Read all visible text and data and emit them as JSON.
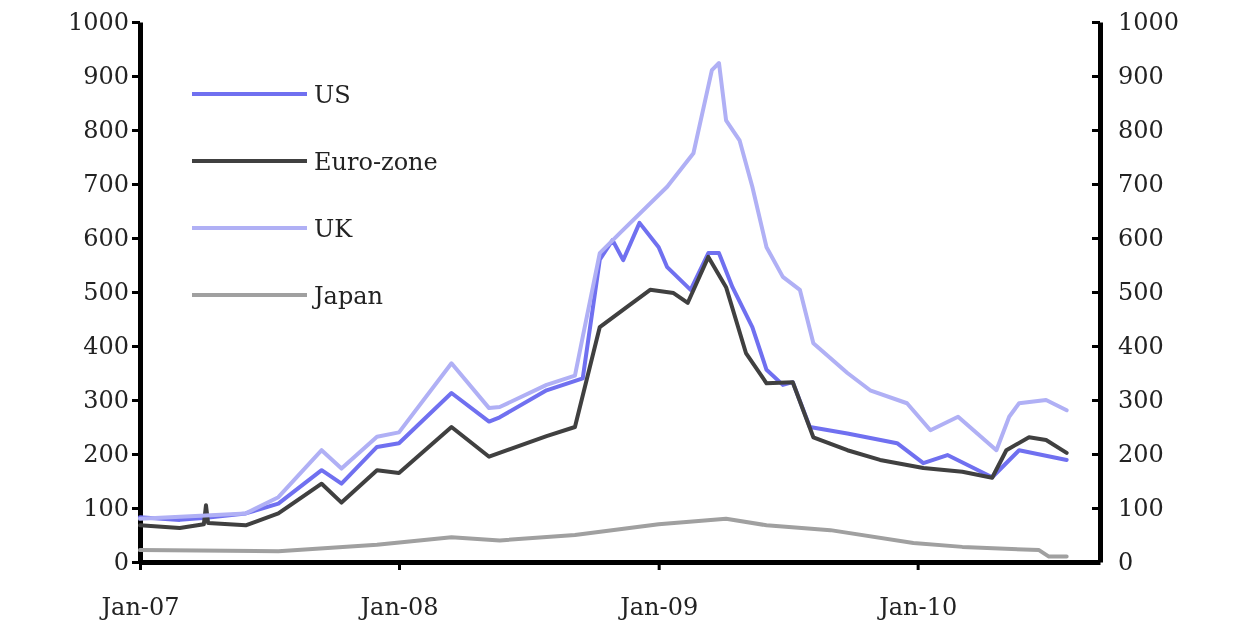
{
  "chart_data": {
    "type": "line",
    "xlim": [
      "2007-01-01",
      "2010-09-15"
    ],
    "xticks": [
      {
        "value": "2007-01-01",
        "label": "Jan-07"
      },
      {
        "value": "2008-01-01",
        "label": "Jan-08"
      },
      {
        "value": "2009-01-01",
        "label": "Jan-09"
      },
      {
        "value": "2010-01-01",
        "label": "Jan-10"
      }
    ],
    "ylim": [
      0,
      1000
    ],
    "yticks": [
      0,
      100,
      200,
      300,
      400,
      500,
      600,
      700,
      800,
      900,
      1000
    ],
    "y2lim": [
      0,
      1000
    ],
    "y2ticks": [
      0,
      100,
      200,
      300,
      400,
      500,
      600,
      700,
      800,
      900,
      1000
    ],
    "grid": false,
    "legend": "top left",
    "line_style": "solid",
    "marker": "none",
    "series": [
      {
        "name": "US",
        "color": "#7070f0",
        "x": [
          "2007-01-01",
          "2007-02-26",
          "2007-04-04",
          "2007-05-30",
          "2007-07-15",
          "2007-09-14",
          "2007-10-12",
          "2007-12-01",
          "2008-01-01",
          "2008-03-15",
          "2008-05-07",
          "2008-05-22",
          "2008-07-27",
          "2008-09-16",
          "2008-10-10",
          "2008-10-28",
          "2008-11-12",
          "2008-12-05",
          "2009-01-01",
          "2009-01-13",
          "2009-02-15",
          "2009-03-12",
          "2009-03-27",
          "2009-04-15",
          "2009-05-13",
          "2009-06-02",
          "2009-06-25",
          "2009-07-09",
          "2009-08-02",
          "2009-09-24",
          "2009-12-03",
          "2010-01-09",
          "2010-02-12",
          "2010-04-16",
          "2010-05-24",
          "2010-07-30"
        ],
        "values": [
          83,
          78,
          82,
          90,
          108,
          170,
          145,
          213,
          220,
          313,
          260,
          268,
          318,
          340,
          560,
          596,
          559,
          628,
          583,
          546,
          504,
          572,
          572,
          509,
          435,
          356,
          328,
          333,
          250,
          238,
          220,
          183,
          198,
          157,
          207,
          189
        ]
      },
      {
        "name": "Euro-zone",
        "color": "#404040",
        "x": [
          "2007-01-01",
          "2007-02-26",
          "2007-04-01",
          "2007-04-04",
          "2007-04-07",
          "2007-05-30",
          "2007-07-15",
          "2007-09-14",
          "2007-10-12",
          "2007-12-01",
          "2008-01-01",
          "2008-03-15",
          "2008-05-07",
          "2008-07-27",
          "2008-09-05",
          "2008-10-10",
          "2008-11-17",
          "2008-12-20",
          "2009-01-22",
          "2009-02-11",
          "2009-03-12",
          "2009-04-06",
          "2009-05-04",
          "2009-06-02",
          "2009-07-09",
          "2009-08-07",
          "2009-09-24",
          "2009-11-09",
          "2010-01-09",
          "2010-03-05",
          "2010-04-16",
          "2010-05-06",
          "2010-06-07",
          "2010-07-01",
          "2010-07-30"
        ],
        "values": [
          68,
          63,
          70,
          105,
          72,
          68,
          90,
          145,
          110,
          170,
          165,
          250,
          195,
          233,
          250,
          435,
          472,
          504,
          498,
          480,
          565,
          509,
          387,
          331,
          333,
          231,
          207,
          189,
          174,
          167,
          156,
          207,
          231,
          226,
          202
        ]
      },
      {
        "name": "UK",
        "color": "#b0b0f5",
        "x": [
          "2007-01-01",
          "2007-05-30",
          "2007-07-15",
          "2007-09-14",
          "2007-10-12",
          "2007-12-01",
          "2008-01-01",
          "2008-03-15",
          "2008-05-07",
          "2008-05-22",
          "2008-07-27",
          "2008-09-05",
          "2008-09-16",
          "2008-10-10",
          "2008-11-08",
          "2009-01-13",
          "2009-02-19",
          "2009-03-17",
          "2009-03-27",
          "2009-04-06",
          "2009-04-25",
          "2009-05-13",
          "2009-06-02",
          "2009-06-25",
          "2009-07-19",
          "2009-08-07",
          "2009-09-24",
          "2009-10-26",
          "2009-12-17",
          "2010-01-19",
          "2010-02-27",
          "2010-04-22",
          "2010-05-10",
          "2010-05-24",
          "2010-07-01",
          "2010-07-30"
        ],
        "values": [
          80,
          90,
          120,
          207,
          173,
          232,
          240,
          368,
          285,
          287,
          328,
          345,
          417,
          572,
          610,
          695,
          757,
          911,
          924,
          818,
          781,
          695,
          583,
          528,
          504,
          405,
          350,
          318,
          294,
          244,
          269,
          207,
          269,
          294,
          300,
          281
        ]
      },
      {
        "name": "Japan",
        "color": "#a0a0a0",
        "x": [
          "2007-01-01",
          "2007-07-15",
          "2007-12-01",
          "2008-03-15",
          "2008-05-22",
          "2008-09-05",
          "2009-01-01",
          "2009-04-06",
          "2009-06-02",
          "2009-08-31",
          "2009-12-26",
          "2010-03-05",
          "2010-06-21",
          "2010-07-05",
          "2010-07-30"
        ],
        "values": [
          22,
          20,
          32,
          46,
          40,
          50,
          70,
          80,
          68,
          59,
          35,
          28,
          22,
          10,
          10
        ]
      }
    ]
  }
}
